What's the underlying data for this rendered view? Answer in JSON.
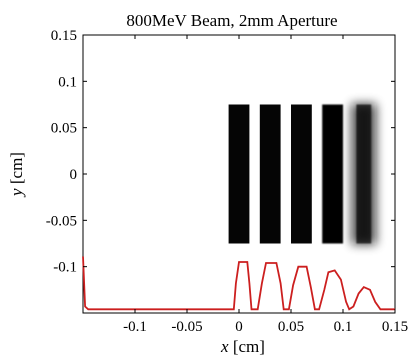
{
  "chart_data": {
    "type": "heatmap",
    "title": "800MeV Beam, 2mm Aperture",
    "xlabel": {
      "var": "x",
      "unit": " [cm]"
    },
    "ylabel": {
      "var": "y",
      "unit": " [cm]"
    },
    "xlim": [
      -0.15,
      0.15
    ],
    "ylim": [
      -0.15,
      0.15
    ],
    "x_ticks": [
      {
        "value": -0.1,
        "label": "-0.1"
      },
      {
        "value": -0.05,
        "label": "-0.05"
      },
      {
        "value": 0,
        "label": "0"
      },
      {
        "value": 0.05,
        "label": "0.05"
      },
      {
        "value": 0.1,
        "label": "0.1"
      },
      {
        "value": 0.15,
        "label": "0.15"
      }
    ],
    "y_ticks": [
      {
        "value": 0.15,
        "label": "0.15"
      },
      {
        "value": 0.1,
        "label": "0.1"
      },
      {
        "value": 0.05,
        "label": "0.05"
      },
      {
        "value": 0,
        "label": "0"
      },
      {
        "value": -0.05,
        "label": "-0.05"
      },
      {
        "value": -0.1,
        "label": "-0.1"
      }
    ],
    "grid": false,
    "bars": [
      {
        "x_center": 0.0,
        "width": 0.02,
        "y_range": [
          -0.075,
          0.075
        ],
        "blur": 0.0
      },
      {
        "x_center": 0.03,
        "width": 0.02,
        "y_range": [
          -0.075,
          0.075
        ],
        "blur": 0.0
      },
      {
        "x_center": 0.06,
        "width": 0.02,
        "y_range": [
          -0.075,
          0.075
        ],
        "blur": 0.0
      },
      {
        "x_center": 0.09,
        "width": 0.02,
        "y_range": [
          -0.075,
          0.075
        ],
        "blur": 0.3
      },
      {
        "x_center": 0.12,
        "width": 0.02,
        "y_range": [
          -0.075,
          0.075
        ],
        "blur": 1.6
      }
    ],
    "profile": {
      "color": "#cc1f1f",
      "baseline_y": -0.146,
      "points": [
        [
          -0.15,
          -0.089
        ],
        [
          -0.148,
          -0.143
        ],
        [
          -0.145,
          -0.146
        ],
        [
          -0.005,
          -0.146
        ],
        [
          -0.003,
          -0.118
        ],
        [
          0.0,
          -0.095
        ],
        [
          0.008,
          -0.095
        ],
        [
          0.01,
          -0.118
        ],
        [
          0.012,
          -0.146
        ],
        [
          0.018,
          -0.146
        ],
        [
          0.022,
          -0.118
        ],
        [
          0.026,
          -0.096
        ],
        [
          0.036,
          -0.096
        ],
        [
          0.04,
          -0.118
        ],
        [
          0.043,
          -0.146
        ],
        [
          0.048,
          -0.146
        ],
        [
          0.052,
          -0.12
        ],
        [
          0.057,
          -0.1
        ],
        [
          0.065,
          -0.1
        ],
        [
          0.069,
          -0.122
        ],
        [
          0.073,
          -0.146
        ],
        [
          0.077,
          -0.146
        ],
        [
          0.082,
          -0.125
        ],
        [
          0.086,
          -0.106
        ],
        [
          0.092,
          -0.104
        ],
        [
          0.098,
          -0.114
        ],
        [
          0.103,
          -0.138
        ],
        [
          0.106,
          -0.146
        ],
        [
          0.11,
          -0.143
        ],
        [
          0.115,
          -0.129
        ],
        [
          0.12,
          -0.122
        ],
        [
          0.126,
          -0.125
        ],
        [
          0.131,
          -0.138
        ],
        [
          0.136,
          -0.146
        ],
        [
          0.15,
          -0.146
        ]
      ]
    }
  }
}
